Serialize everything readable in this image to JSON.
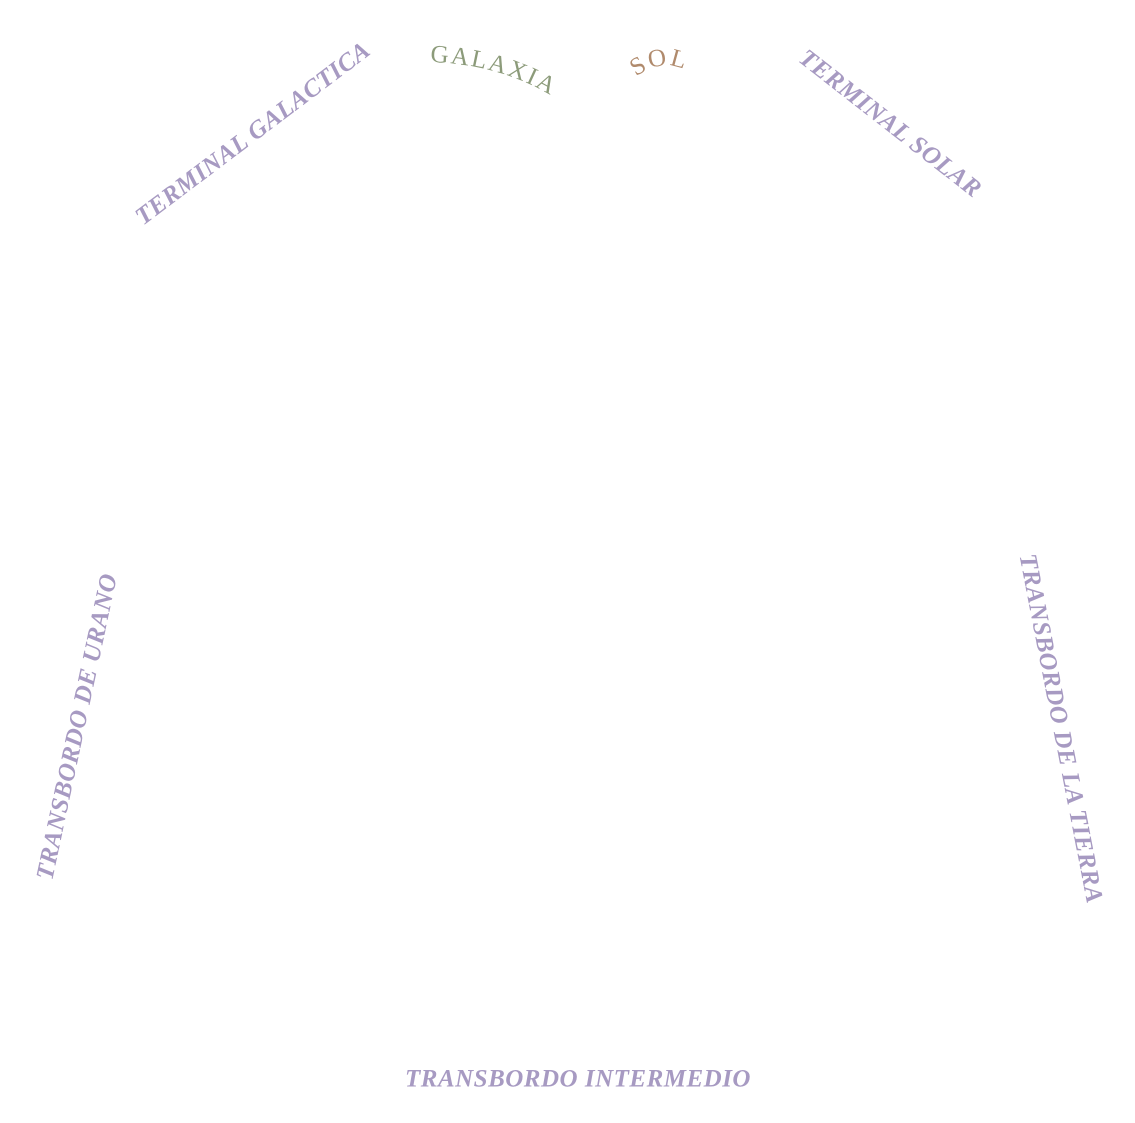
{
  "colors": {
    "station": "#a79ac2",
    "galaxia": "#8c9b7a",
    "sol": "#b08a6c",
    "background": "#ffffff"
  },
  "labels": {
    "galaxia": "GALAXIA",
    "sol": "SOL",
    "terminal_galactica": "TERMINAL GALACTICA",
    "terminal_solar": "TERMINAL SOLAR",
    "transbordo_urano": "TRANSBORDO DE URANO",
    "transbordo_tierra": "TRANSBORDO DE LA TIERRA",
    "transbordo_intermedio": "TRANSBORDO INTERMEDIO"
  }
}
